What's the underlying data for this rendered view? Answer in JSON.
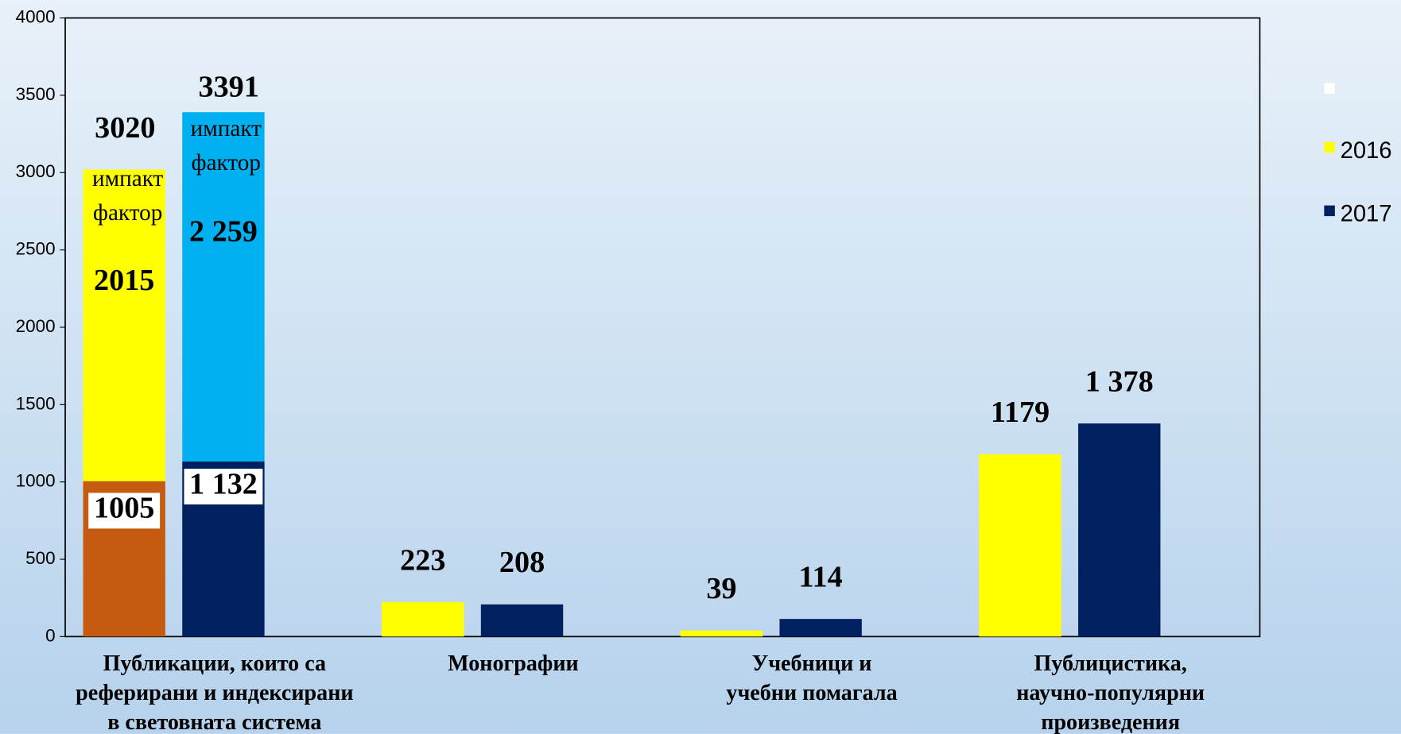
{
  "chart_data": {
    "type": "bar",
    "categories": [
      "Публикации, които са\nреферирани и индексирани\nв световната система",
      "Монографии",
      "Учебници и\nучебни помагала",
      "Публицистика,\nнаучно-популярни\nпроизведения"
    ],
    "annotation": "импакт фактор",
    "series": [
      {
        "name": "2016",
        "color": "#ffff00",
        "values": [
          3020,
          223,
          39,
          1179
        ],
        "segments": [
          {
            "value": 1005,
            "color": "#c55a11"
          },
          {
            "value": 2015,
            "color": "#ffff00"
          }
        ]
      },
      {
        "name": "2017",
        "color": "#002060",
        "values": [
          3391,
          208,
          114,
          1378
        ],
        "value_labels": [
          "3391",
          "208",
          "114",
          "1 378"
        ],
        "segments": [
          {
            "value": 1132,
            "color": "#002060",
            "label": "1 132"
          },
          {
            "value": 2259,
            "color": "#00b0f0",
            "label": "2 259"
          }
        ]
      }
    ],
    "ylim": [
      0,
      4000
    ],
    "yticks": [
      0,
      500,
      1000,
      1500,
      2000,
      2500,
      3000,
      3500,
      4000
    ]
  }
}
